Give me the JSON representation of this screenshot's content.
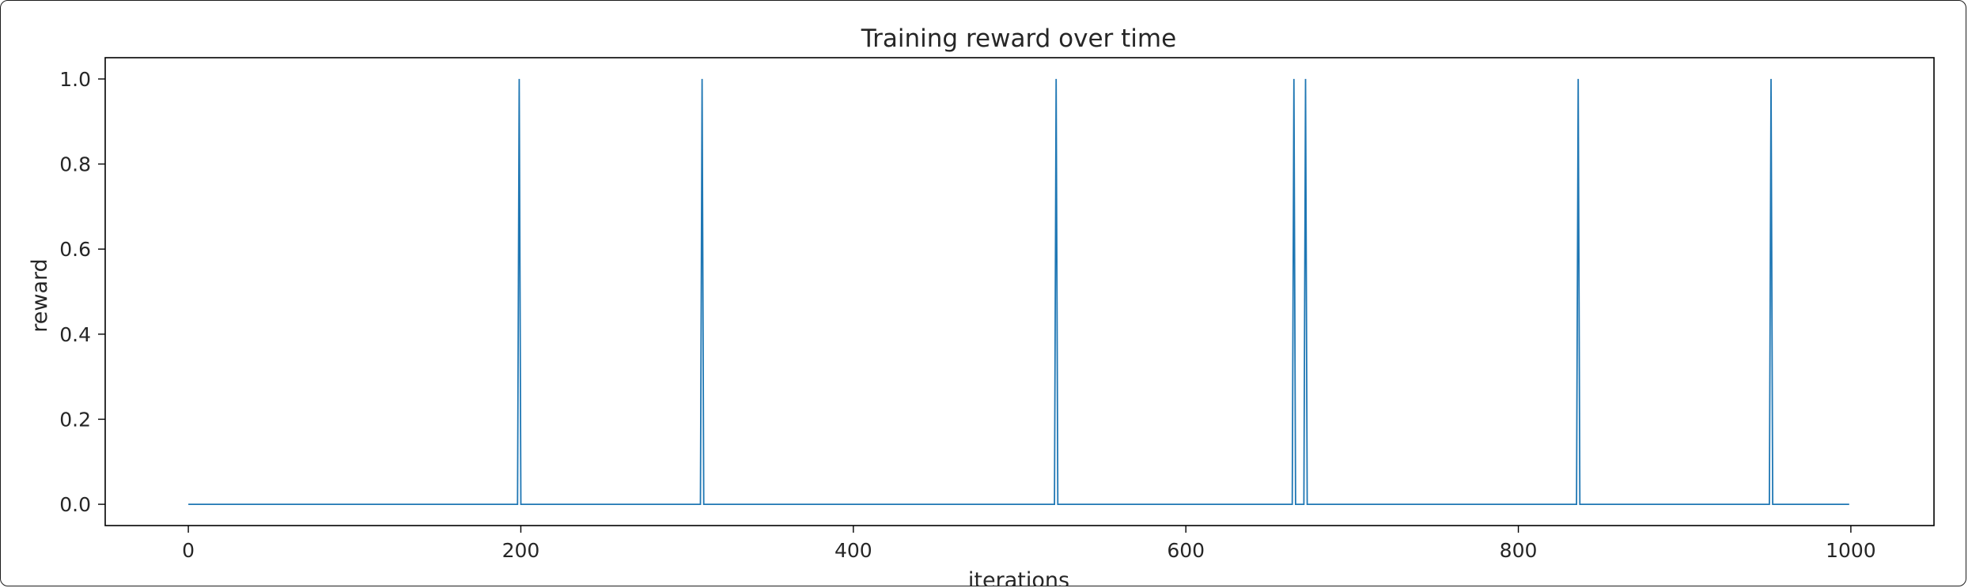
{
  "chart_data": {
    "type": "line",
    "title": "Training reward over time",
    "xlabel": "iterations",
    "ylabel": "reward",
    "xlim": [
      -50,
      1050
    ],
    "ylim": [
      -0.05,
      1.05
    ],
    "xticks": [
      "0",
      "200",
      "400",
      "600",
      "800",
      "1000"
    ],
    "yticks": [
      "0.0",
      "0.2",
      "0.4",
      "0.6",
      "0.8",
      "1.0"
    ],
    "grid": false,
    "line_color": "#1f77b4",
    "series": [
      {
        "x": [
          0,
          198,
          199,
          200,
          308,
          309,
          310,
          521,
          522,
          523,
          664,
          665,
          666,
          671,
          672,
          673,
          835,
          836,
          837,
          951,
          952,
          953,
          999
        ],
        "values": [
          0,
          0,
          1,
          0,
          0,
          1,
          0,
          0,
          1,
          0,
          0,
          1,
          0,
          0,
          1,
          0,
          0,
          1,
          0,
          0,
          1,
          0,
          0
        ]
      }
    ]
  }
}
